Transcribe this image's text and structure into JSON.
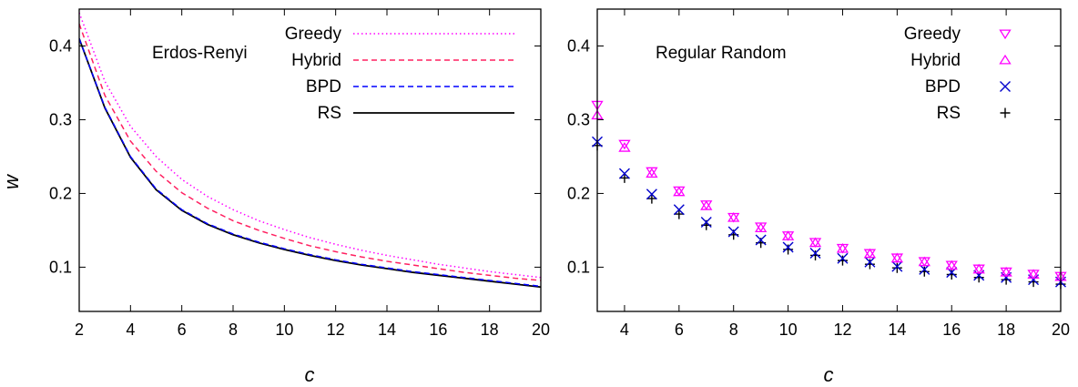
{
  "chart_data": [
    {
      "type": "line",
      "annotation": "Erdos-Renyi",
      "xlabel": "c",
      "ylabel": "w",
      "xlim": [
        2,
        20
      ],
      "ylim": [
        0.04,
        0.45
      ],
      "xticks": [
        2,
        4,
        6,
        8,
        10,
        12,
        14,
        16,
        18,
        20
      ],
      "yticks": [
        0.1,
        0.2,
        0.3,
        0.4
      ],
      "tick_labels_x": [
        "2",
        "4",
        "6",
        "8",
        "10",
        "12",
        "14",
        "16",
        "18",
        "20"
      ],
      "tick_labels_y": [
        "0.1",
        "0.2",
        "0.3",
        "0.4"
      ],
      "legend_position": "top-right",
      "x": [
        2,
        3,
        4,
        5,
        6,
        7,
        8,
        9,
        10,
        11,
        12,
        13,
        14,
        15,
        16,
        17,
        18,
        19,
        20
      ],
      "series": [
        {
          "name": "Greedy",
          "color": "#ff00ff",
          "style": "dotted",
          "values": [
            0.445,
            0.352,
            0.291,
            0.25,
            0.219,
            0.196,
            0.178,
            0.163,
            0.151,
            0.14,
            0.131,
            0.123,
            0.116,
            0.11,
            0.104,
            0.099,
            0.094,
            0.09,
            0.086
          ]
        },
        {
          "name": "Hybrid",
          "color": "#ff2060",
          "style": "dashed",
          "values": [
            0.43,
            0.333,
            0.271,
            0.23,
            0.201,
            0.18,
            0.163,
            0.15,
            0.139,
            0.129,
            0.121,
            0.114,
            0.108,
            0.103,
            0.098,
            0.093,
            0.089,
            0.085,
            0.082
          ]
        },
        {
          "name": "BPD",
          "color": "#0000ff",
          "style": "dashed",
          "values": [
            0.41,
            0.317,
            0.25,
            0.206,
            0.178,
            0.159,
            0.145,
            0.134,
            0.125,
            0.117,
            0.11,
            0.104,
            0.099,
            0.094,
            0.09,
            0.086,
            0.082,
            0.078,
            0.074
          ]
        },
        {
          "name": "RS",
          "color": "#000000",
          "style": "solid",
          "values": [
            0.41,
            0.316,
            0.249,
            0.205,
            0.177,
            0.158,
            0.144,
            0.133,
            0.124,
            0.116,
            0.109,
            0.103,
            0.098,
            0.093,
            0.089,
            0.085,
            0.081,
            0.077,
            0.073
          ]
        }
      ]
    },
    {
      "type": "scatter",
      "annotation": "Regular Random",
      "xlabel": "c",
      "ylabel": "",
      "xlim": [
        3,
        20
      ],
      "ylim": [
        0.04,
        0.45
      ],
      "xticks": [
        4,
        6,
        8,
        10,
        12,
        14,
        16,
        18,
        20
      ],
      "yticks": [
        0.1,
        0.2,
        0.3,
        0.4
      ],
      "tick_labels_x": [
        "4",
        "6",
        "8",
        "10",
        "12",
        "14",
        "16",
        "18",
        "20"
      ],
      "tick_labels_y": [
        "0.1",
        "0.2",
        "0.3",
        "0.4"
      ],
      "legend_position": "top-right",
      "x": [
        3,
        4,
        5,
        6,
        7,
        8,
        9,
        10,
        11,
        12,
        13,
        14,
        15,
        16,
        17,
        18,
        19,
        20
      ],
      "series": [
        {
          "name": "Greedy",
          "color": "#ff00ff",
          "marker": "triangle-down",
          "values": [
            0.32,
            0.267,
            0.23,
            0.204,
            0.185,
            0.168,
            0.155,
            0.143,
            0.134,
            0.126,
            0.119,
            0.113,
            0.108,
            0.103,
            0.098,
            0.094,
            0.091,
            0.088
          ]
        },
        {
          "name": "Hybrid",
          "color": "#ff00ff",
          "marker": "triangle-up",
          "values": [
            0.306,
            0.262,
            0.227,
            0.202,
            0.183,
            0.167,
            0.153,
            0.142,
            0.133,
            0.125,
            0.118,
            0.112,
            0.107,
            0.102,
            0.097,
            0.093,
            0.09,
            0.087
          ]
        },
        {
          "name": "BPD",
          "color": "#0000cc",
          "marker": "x",
          "values": [
            0.27,
            0.227,
            0.199,
            0.178,
            0.161,
            0.148,
            0.137,
            0.127,
            0.119,
            0.112,
            0.107,
            0.101,
            0.097,
            0.093,
            0.089,
            0.086,
            0.083,
            0.08
          ]
        },
        {
          "name": "RS",
          "color": "#000000",
          "marker": "plus",
          "values": [
            0.265,
            0.221,
            0.193,
            0.172,
            0.157,
            0.144,
            0.133,
            0.124,
            0.116,
            0.109,
            0.104,
            0.099,
            0.094,
            0.09,
            0.086,
            0.083,
            0.08,
            0.077
          ]
        }
      ]
    }
  ]
}
